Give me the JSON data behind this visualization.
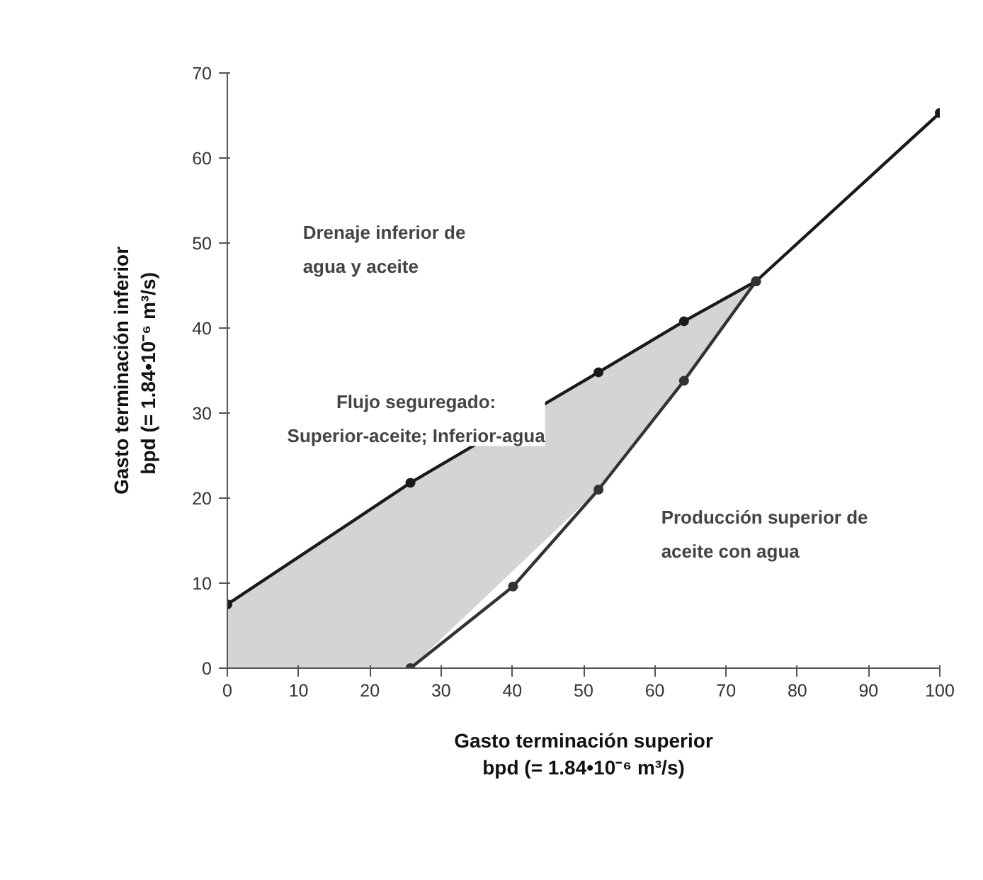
{
  "chart_data": {
    "type": "line",
    "xlabel": "Gasto terminación superior\nbpd (= 1.84•10⁻⁶ m³/s)",
    "ylabel": "Gasto terminación inferior\nbpd  (= 1.84•10⁻⁶ m³/s)",
    "xlim": [
      0,
      100
    ],
    "ylim": [
      0,
      70
    ],
    "xticks": [
      0,
      10,
      20,
      30,
      40,
      50,
      60,
      70,
      80,
      90,
      100
    ],
    "yticks": [
      0,
      10,
      20,
      30,
      40,
      50,
      60,
      70
    ],
    "grid": false,
    "series": [
      {
        "color": "#1a1a1a",
        "x": [
          0,
          25.7,
          52.1,
          64.1,
          74.2,
          100
        ],
        "values": [
          7.5,
          21.8,
          34.8,
          40.8,
          45.5,
          65.3
        ],
        "marker": "circle"
      },
      {
        "color": "#333333",
        "x": [
          0,
          25.7,
          40.1,
          52.1,
          64.1,
          74.2
        ],
        "values": [
          null,
          0,
          9.6,
          21,
          33.8,
          45.5
        ],
        "lower": [
          0,
          0,
          null,
          21,
          33.8,
          45.5
        ],
        "upper": [
          7.5,
          21.8,
          null,
          34.8,
          40.8,
          45.5
        ],
        "marker": "circle"
      }
    ],
    "annotations": [
      "Drenaje inferior de\nagua y aceite",
      "Flujo seguregado:\nSuperior-aceite; Inferior-agua",
      "Producción superior de\naceite con agua"
    ]
  }
}
